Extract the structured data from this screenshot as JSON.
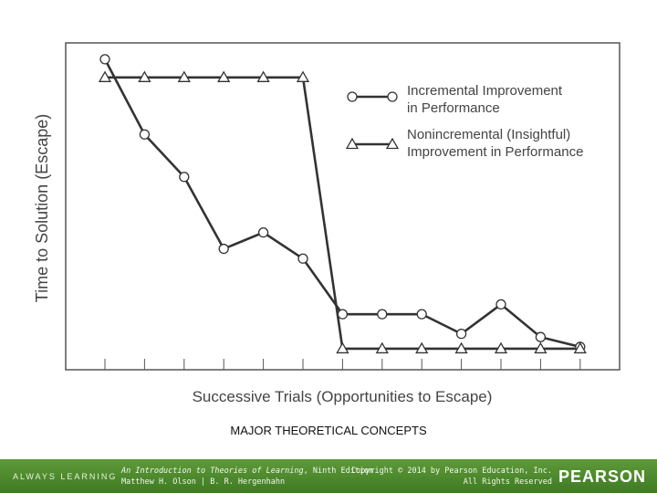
{
  "chart_data": {
    "type": "line",
    "xlabel": "Successive Trials (Opportunities to Escape)",
    "ylabel": "Time to Solution (Escape)",
    "x": [
      1,
      2,
      3,
      4,
      5,
      6,
      7,
      8,
      9,
      10,
      11,
      12,
      13
    ],
    "ylim": [
      0,
      100
    ],
    "grid": false,
    "legend_position": "top-right",
    "series": [
      {
        "name": "Incremental Improvement in Performance",
        "marker": "circle",
        "values": [
          95,
          72,
          59,
          37,
          42,
          34,
          17,
          17,
          17,
          11,
          20,
          10,
          7
        ]
      },
      {
        "name": "Nonincremental (Insightful) Improvement in Performance",
        "marker": "triangle",
        "values": [
          90,
          90,
          90,
          90,
          90,
          90,
          7,
          7,
          7,
          7,
          7,
          7,
          7
        ]
      }
    ],
    "legend": [
      [
        "Incremental Improvement",
        "in Performance"
      ],
      [
        "Nonincremental (Insightful)",
        "Improvement in Performance"
      ]
    ],
    "line_color": "#333333",
    "axis_color": "#555555"
  },
  "slide": {
    "caption": "MAJOR THEORETICAL CONCEPTS"
  },
  "footer": {
    "always_learning": "ALWAYS LEARNING",
    "book_title": "An Introduction to Theories of Learning",
    "book_edition": ", Ninth Edition",
    "authors": "Matthew H. Olson | B. R. Hergenhahn",
    "copyright": "Copyright © 2014 by Pearson Education, Inc.",
    "rights": "All Rights Reserved",
    "logo": "PEARSON",
    "bar_color": "#4f8a2e"
  }
}
